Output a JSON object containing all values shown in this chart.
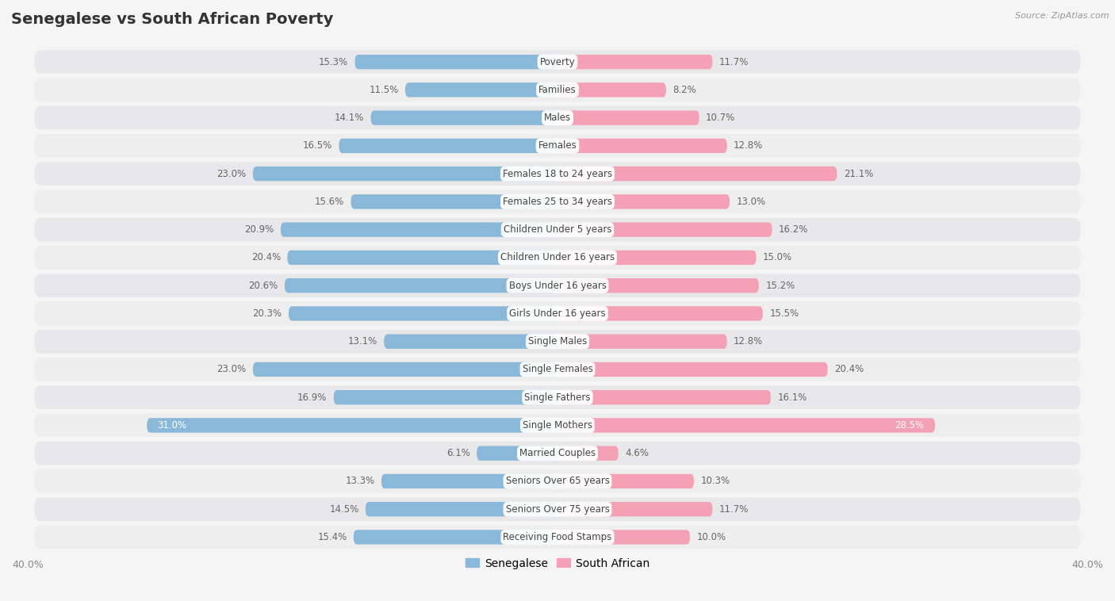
{
  "title": "Senegalese vs South African Poverty",
  "source": "Source: ZipAtlas.com",
  "categories": [
    "Poverty",
    "Families",
    "Males",
    "Females",
    "Females 18 to 24 years",
    "Females 25 to 34 years",
    "Children Under 5 years",
    "Children Under 16 years",
    "Boys Under 16 years",
    "Girls Under 16 years",
    "Single Males",
    "Single Females",
    "Single Fathers",
    "Single Mothers",
    "Married Couples",
    "Seniors Over 65 years",
    "Seniors Over 75 years",
    "Receiving Food Stamps"
  ],
  "senegalese": [
    15.3,
    11.5,
    14.1,
    16.5,
    23.0,
    15.6,
    20.9,
    20.4,
    20.6,
    20.3,
    13.1,
    23.0,
    16.9,
    31.0,
    6.1,
    13.3,
    14.5,
    15.4
  ],
  "south_african": [
    11.7,
    8.2,
    10.7,
    12.8,
    21.1,
    13.0,
    16.2,
    15.0,
    15.2,
    15.5,
    12.8,
    20.4,
    16.1,
    28.5,
    4.6,
    10.3,
    11.7,
    10.0
  ],
  "senegalese_color": "#89b8d8",
  "south_african_color": "#f4a0b5",
  "background_color": "#f5f5f5",
  "row_bg_color": "#e8e8e8",
  "row_pill_color": "#e0e0e0",
  "axis_max": 40.0,
  "bar_height": 0.52,
  "title_fontsize": 14,
  "label_fontsize": 8.5,
  "value_fontsize": 8.5,
  "legend_fontsize": 10
}
